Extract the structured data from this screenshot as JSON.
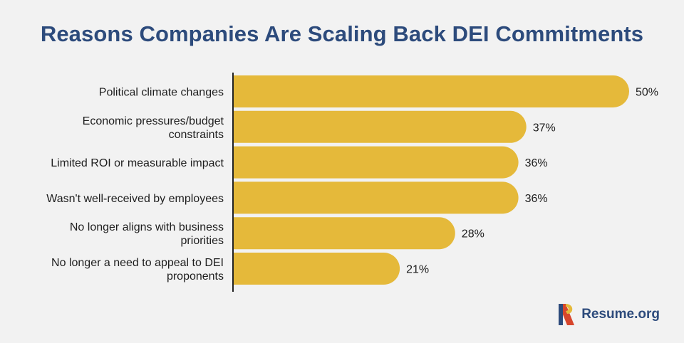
{
  "chart_data": {
    "type": "bar",
    "orientation": "horizontal",
    "title": "Reasons Companies Are Scaling Back DEI Commitments",
    "categories": [
      [
        "Political climate changes"
      ],
      [
        "Economic pressures/budget",
        "constraints"
      ],
      [
        "Limited ROI or measurable impact"
      ],
      [
        "Wasn't well-received by employees"
      ],
      [
        "No longer aligns with business",
        "priorities"
      ],
      [
        "No longer a need to appeal to DEI",
        "proponents"
      ]
    ],
    "values": [
      50,
      37,
      36,
      36,
      28,
      21
    ],
    "value_labels": [
      "50%",
      "37%",
      "36%",
      "36%",
      "28%",
      "21%"
    ],
    "value_unit": "%",
    "xlim": [
      0,
      50
    ],
    "grid": false,
    "legend": "none",
    "bar_color": "#e5b93a"
  },
  "brand": {
    "name": "Resume.org"
  },
  "colors": {
    "title": "#2d4b7c",
    "background": "#f2f2f2",
    "logo_red": "#d7462c",
    "logo_yellow": "#e5b93a",
    "logo_blue": "#2d4b7c"
  }
}
